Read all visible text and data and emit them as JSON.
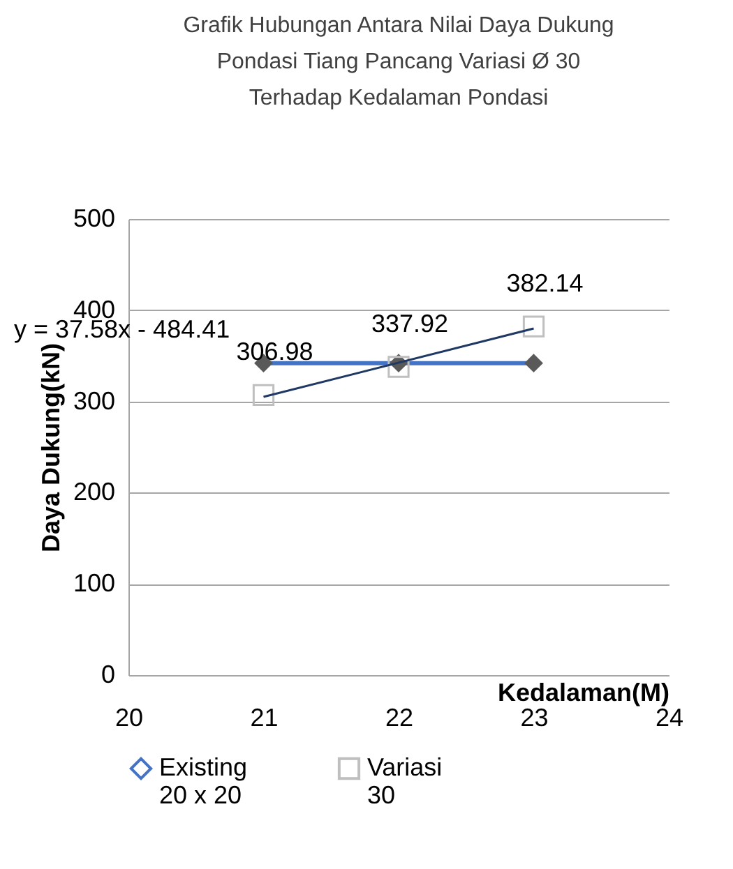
{
  "chart_data": {
    "type": "line",
    "title": "Grafik Hubungan Antara Nilai Daya Dukung Pondasi Tiang Pancang Variasi Ø 30 Terhadap Kedalaman Pondasi",
    "xlabel": "Kedalaman(M)",
    "ylabel": "Daya Dukung(kN)",
    "x": [
      21,
      22,
      23
    ],
    "series": [
      {
        "name": "Existing 20 x 20",
        "color": "#4472c4",
        "values": [
          342,
          342,
          342
        ],
        "marker": "diamond"
      },
      {
        "name": "Variasi 30",
        "type": "scatter",
        "color": "#bfbfbf",
        "values": [
          306.98,
          337.92,
          382.14
        ],
        "marker": "square",
        "value_labels": [
          "306.98",
          "337.92",
          "382.14"
        ]
      },
      {
        "type": "line",
        "color": "#1f3864",
        "x": [
          21,
          23
        ],
        "values": [
          305,
          380
        ],
        "marker": "none"
      }
    ],
    "annotations": [
      "y = 37.58x - 484.41"
    ],
    "xlim": [
      20,
      24
    ],
    "xticks": [
      20,
      21,
      22,
      23,
      24
    ],
    "ylim": [
      0,
      500
    ],
    "yticks": [
      0,
      100,
      200,
      300,
      400,
      500
    ],
    "grid": "y",
    "legend": "bottom"
  }
}
